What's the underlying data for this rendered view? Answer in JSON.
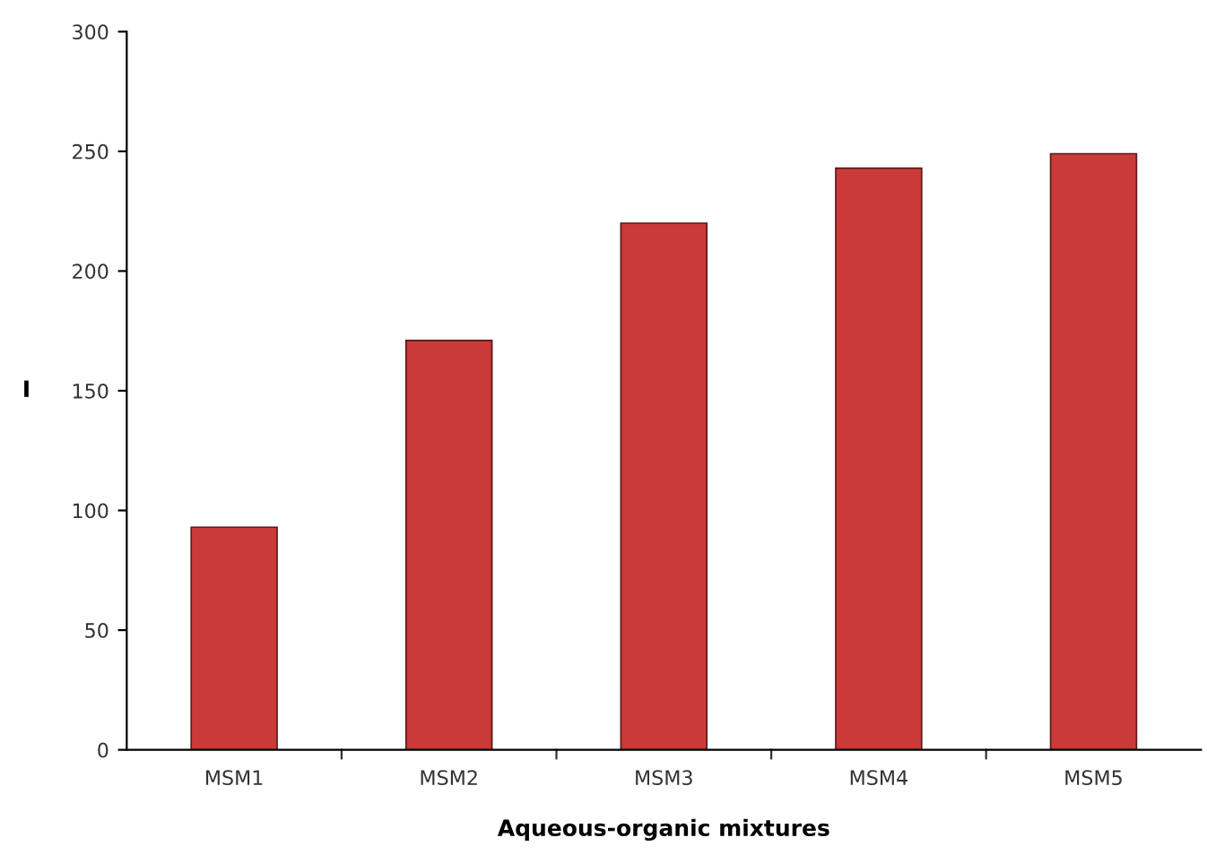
{
  "chart_data": {
    "type": "bar",
    "xlabel": "Aqueous-organic mixtures",
    "ylabel": "I",
    "categories": [
      "MSM1",
      "MSM2",
      "MSM3",
      "MSM4",
      "MSM5"
    ],
    "values": [
      93,
      171,
      220,
      243,
      249
    ],
    "color": "#c93a38",
    "ylim": [
      0,
      300
    ],
    "yticks": [
      0,
      50,
      100,
      150,
      200,
      250,
      300
    ],
    "grid": false,
    "legend": false
  }
}
